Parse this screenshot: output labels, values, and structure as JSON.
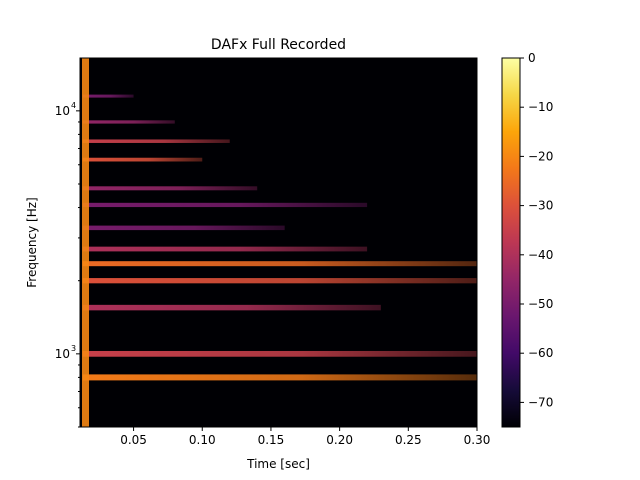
{
  "chart_data": {
    "type": "heatmap",
    "title": "DAFx Full Recorded",
    "xlabel": "Time [sec]",
    "ylabel": "Frequency [Hz]",
    "x_scale": "linear",
    "y_scale": "log",
    "xlim": [
      0.011,
      0.3
    ],
    "ylim": [
      500,
      16500
    ],
    "x_ticks": [
      0.05,
      0.1,
      0.15,
      0.2,
      0.25,
      0.3
    ],
    "x_tick_labels": [
      "0.05",
      "0.10",
      "0.15",
      "0.20",
      "0.25",
      "0.30"
    ],
    "y_major_ticks": [
      1000,
      10000
    ],
    "y_major_tick_labels": [
      "10",
      "10"
    ],
    "y_major_tick_exponents": [
      "3",
      "4"
    ],
    "y_minor_ticks": [
      500,
      600,
      700,
      800,
      900,
      2000,
      3000,
      4000,
      5000,
      6000,
      7000,
      8000,
      9000
    ],
    "colormap": "inferno",
    "colorbar": {
      "min": -75,
      "max": 0,
      "ticks": [
        0,
        -10,
        -20,
        -30,
        -40,
        -50,
        -60,
        -70
      ],
      "tick_labels": [
        "0",
        "−10",
        "−20",
        "−30",
        "−40",
        "−50",
        "−60",
        "−70"
      ]
    },
    "background_level_db": -75,
    "onset_time": 0.013,
    "harmonic_bands": [
      {
        "freq_hz": 800,
        "level_db": -22,
        "decay_end_sec": 0.3
      },
      {
        "freq_hz": 1000,
        "level_db": -35,
        "decay_end_sec": 0.3
      },
      {
        "freq_hz": 1550,
        "level_db": -40,
        "decay_end_sec": 0.23
      },
      {
        "freq_hz": 2000,
        "level_db": -30,
        "decay_end_sec": 0.3
      },
      {
        "freq_hz": 2350,
        "level_db": -25,
        "decay_end_sec": 0.3
      },
      {
        "freq_hz": 2700,
        "level_db": -40,
        "decay_end_sec": 0.22
      },
      {
        "freq_hz": 3300,
        "level_db": -50,
        "decay_end_sec": 0.16
      },
      {
        "freq_hz": 4100,
        "level_db": -50,
        "decay_end_sec": 0.22
      },
      {
        "freq_hz": 4800,
        "level_db": -45,
        "decay_end_sec": 0.14
      },
      {
        "freq_hz": 6300,
        "level_db": -30,
        "decay_end_sec": 0.1
      },
      {
        "freq_hz": 7500,
        "level_db": -35,
        "decay_end_sec": 0.12
      },
      {
        "freq_hz": 9000,
        "level_db": -45,
        "decay_end_sec": 0.08
      },
      {
        "freq_hz": 11500,
        "level_db": -50,
        "decay_end_sec": 0.05
      }
    ]
  }
}
